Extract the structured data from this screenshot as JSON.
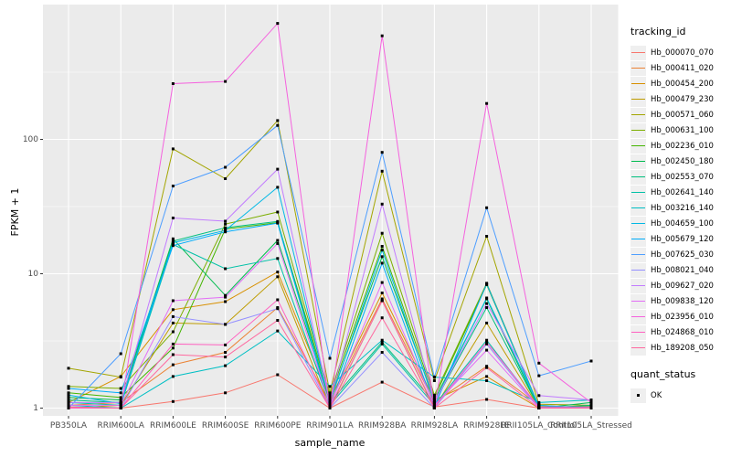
{
  "figure": {
    "background": "#FFFFFF",
    "panel_background": "#EBEBEB",
    "gridline_color": "#FFFFFF",
    "axis_text_color": "#4D4D4D",
    "tick_color": "#333333",
    "point_color": "#000000"
  },
  "legend": {
    "tracking_title": "tracking_id",
    "quant_title": "quant_status",
    "quant_items": [
      "OK"
    ]
  },
  "chart_data": {
    "type": "line",
    "title": "",
    "xlabel": "sample_name",
    "ylabel": "FPKM + 1",
    "y_scale": "log10",
    "y_ticks": [
      1,
      10,
      100
    ],
    "y_minor_breaks": [
      3.1623,
      31.623,
      316.23
    ],
    "ylim": [
      0.87,
      950
    ],
    "grid": true,
    "legend_position": "right",
    "marker": "black-square",
    "categories": [
      "PB350LA",
      "RRIM600LA",
      "RRIM600LE",
      "RRIM600SE",
      "RRIM600PE",
      "RRIM901LA",
      "RRIM928BA",
      "RRIM928LA",
      "RRIM928LE",
      "RRII105LA_Control",
      "RRII105LA_Stressed"
    ],
    "series": [
      {
        "name": "Hb_000070_070",
        "color": "#F8766D",
        "values": [
          1.02,
          1.0,
          1.12,
          1.3,
          1.77,
          1.0,
          1.56,
          1.02,
          1.16,
          1.0,
          1.0
        ]
      },
      {
        "name": "Hb_000411_020",
        "color": "#EB8335",
        "values": [
          1.05,
          1.1,
          2.1,
          2.6,
          5.6,
          1.1,
          6.5,
          1.1,
          2.05,
          1.05,
          1.0
        ]
      },
      {
        "name": "Hb_000454_200",
        "color": "#D89000",
        "values": [
          1.1,
          1.72,
          5.4,
          6.2,
          10.3,
          1.15,
          7.2,
          1.15,
          1.72,
          1.0,
          1.0
        ]
      },
      {
        "name": "Hb_000479_230",
        "color": "#BE9C00",
        "values": [
          1.0,
          1.05,
          4.3,
          4.2,
          9.5,
          1.0,
          6.3,
          1.0,
          4.3,
          1.0,
          1.02
        ]
      },
      {
        "name": "Hb_000571_060",
        "color": "#A3A500",
        "values": [
          1.98,
          1.7,
          85.0,
          51.0,
          138,
          1.3,
          58.0,
          1.6,
          19.0,
          1.07,
          1.05
        ]
      },
      {
        "name": "Hb_000631_100",
        "color": "#7CAE00",
        "values": [
          1.45,
          1.4,
          3.7,
          23.4,
          28.8,
          1.25,
          20.0,
          1.25,
          8.5,
          1.03,
          1.0
        ]
      },
      {
        "name": "Hb_002236_010",
        "color": "#43B500",
        "values": [
          1.3,
          1.2,
          2.8,
          21.5,
          24.0,
          1.2,
          16.0,
          1.2,
          8.3,
          1.02,
          1.03
        ]
      },
      {
        "name": "Hb_002450_180",
        "color": "#00BB4E",
        "values": [
          1.2,
          1.15,
          18.2,
          6.9,
          17.7,
          1.15,
          13.4,
          1.15,
          6.5,
          1.0,
          1.1
        ]
      },
      {
        "name": "Hb_002553_070",
        "color": "#00BF7D",
        "values": [
          1.15,
          1.1,
          17.5,
          22.0,
          24.5,
          1.1,
          3.1,
          1.1,
          5.6,
          1.0,
          1.05
        ]
      },
      {
        "name": "Hb_002641_140",
        "color": "#00C1A7",
        "values": [
          1.1,
          1.05,
          16.5,
          10.9,
          13.0,
          1.05,
          3.0,
          1.05,
          3.2,
          1.0,
          1.02
        ]
      },
      {
        "name": "Hb_003216_140",
        "color": "#00BFC4",
        "values": [
          1.05,
          1.0,
          1.72,
          2.07,
          3.75,
          1.45,
          3.2,
          1.7,
          1.6,
          1.1,
          1.15
        ]
      },
      {
        "name": "Hb_004659_100",
        "color": "#00B8E5",
        "values": [
          1.25,
          1.08,
          17.0,
          21.0,
          44.0,
          1.1,
          15.0,
          1.1,
          6.6,
          1.05,
          1.0
        ]
      },
      {
        "name": "Hb_005679_120",
        "color": "#00ADFA",
        "values": [
          1.4,
          1.3,
          16.2,
          20.5,
          23.8,
          1.02,
          12.0,
          1.02,
          8.4,
          1.02,
          1.0
        ]
      },
      {
        "name": "Hb_007625_030",
        "color": "#4E9EFF",
        "values": [
          1.0,
          2.54,
          45.0,
          62.0,
          127,
          2.35,
          80.0,
          1.7,
          31.0,
          1.74,
          2.24
        ]
      },
      {
        "name": "Hb_008021_040",
        "color": "#9590FF",
        "values": [
          1.0,
          1.0,
          4.8,
          4.2,
          5.5,
          1.0,
          2.6,
          1.0,
          3.0,
          1.0,
          1.0
        ]
      },
      {
        "name": "Hb_009627_020",
        "color": "#C27CFF",
        "values": [
          1.1,
          1.1,
          26.0,
          24.6,
          60.0,
          1.1,
          33.0,
          1.1,
          6.0,
          1.24,
          1.15
        ]
      },
      {
        "name": "Hb_009838_120",
        "color": "#E36EF6",
        "values": [
          1.05,
          1.05,
          6.3,
          6.7,
          16.8,
          1.05,
          8.6,
          1.05,
          2.7,
          1.0,
          1.0
        ]
      },
      {
        "name": "Hb_023956_010",
        "color": "#F562DE",
        "values": [
          1.0,
          1.0,
          260,
          270,
          730,
          1.0,
          590,
          1.0,
          185,
          2.16,
          1.1
        ]
      },
      {
        "name": "Hb_024868_010",
        "color": "#FF61C0",
        "values": [
          1.0,
          1.0,
          3.0,
          2.95,
          6.4,
          1.02,
          6.3,
          1.02,
          3.1,
          1.02,
          1.02
        ]
      },
      {
        "name": "Hb_189208_050",
        "color": "#FF689F",
        "values": [
          1.02,
          1.0,
          2.5,
          2.4,
          4.5,
          1.0,
          4.7,
          1.0,
          2.0,
          1.0,
          1.0
        ]
      }
    ],
    "quant_status_series": {
      "label": "OK",
      "marker": "black-square"
    }
  }
}
